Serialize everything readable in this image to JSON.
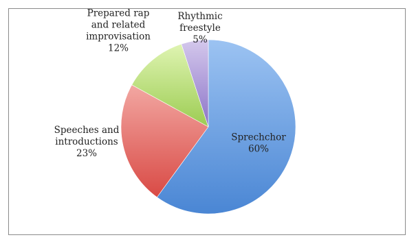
{
  "chart_data": {
    "type": "pie",
    "title": "",
    "slices": [
      {
        "label_lines": [
          "Sprechchor"
        ],
        "pct_text": "60%",
        "value": 60,
        "colors": {
          "light": "#9cc3f2",
          "dark": "#4a86d4"
        }
      },
      {
        "label_lines": [
          "Speeches and",
          "introductions"
        ],
        "pct_text": "23%",
        "value": 23,
        "colors": {
          "light": "#f2a7a2",
          "dark": "#d94a45"
        }
      },
      {
        "label_lines": [
          "Prepared rap",
          "and related",
          "improvisation"
        ],
        "pct_text": "12%",
        "value": 12,
        "colors": {
          "light": "#dff4b2",
          "dark": "#9ccc52"
        }
      },
      {
        "label_lines": [
          "Rhythmic",
          "freestyle"
        ],
        "pct_text": "5%",
        "value": 5,
        "colors": {
          "light": "#d4c8ec",
          "dark": "#8c74c8"
        }
      }
    ],
    "start_angle_deg": 0,
    "direction": "clockwise",
    "legend": "none"
  }
}
